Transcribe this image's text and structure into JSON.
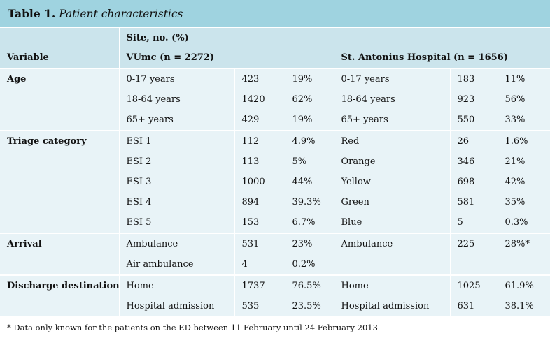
{
  "table": {
    "title_label": "Table 1.",
    "title_text": "Patient characteristics",
    "header_top": "Site, no. (%)",
    "header": {
      "variable": "Variable",
      "site1": "VUmc (n = 2272)",
      "site2": "St. Antonius Hospital (n = 1656)"
    },
    "rows": [
      {
        "var": "Age",
        "a_label": "0-17 years",
        "a_n": "423",
        "a_pct": "19%",
        "b_label": "0-17 years",
        "b_n": "183",
        "b_pct": "11%"
      },
      {
        "var": "",
        "a_label": "18-64 years",
        "a_n": "1420",
        "a_pct": "62%",
        "b_label": "18-64 years",
        "b_n": "923",
        "b_pct": "56%"
      },
      {
        "var": "",
        "a_label": "65+ years",
        "a_n": "429",
        "a_pct": "19%",
        "b_label": "65+ years",
        "b_n": "550",
        "b_pct": "33%"
      },
      {
        "var": "Triage category",
        "a_label": "ESI 1",
        "a_n": "112",
        "a_pct": "4.9%",
        "b_label": "Red",
        "b_n": "26",
        "b_pct": "1.6%"
      },
      {
        "var": "",
        "a_label": "ESI 2",
        "a_n": "113",
        "a_pct": "5%",
        "b_label": "Orange",
        "b_n": "346",
        "b_pct": "21%"
      },
      {
        "var": "",
        "a_label": "ESI 3",
        "a_n": "1000",
        "a_pct": "44%",
        "b_label": "Yellow",
        "b_n": "698",
        "b_pct": "42%"
      },
      {
        "var": "",
        "a_label": "ESI 4",
        "a_n": "894",
        "a_pct": "39.3%",
        "b_label": "Green",
        "b_n": "581",
        "b_pct": "35%"
      },
      {
        "var": "",
        "a_label": "ESI 5",
        "a_n": "153",
        "a_pct": "6.7%",
        "b_label": "Blue",
        "b_n": "5",
        "b_pct": "0.3%"
      },
      {
        "var": "Arrival",
        "a_label": "Ambulance",
        "a_n": "531",
        "a_pct": "23%",
        "b_label": "Ambulance",
        "b_n": "225",
        "b_pct": "28%*"
      },
      {
        "var": "",
        "a_label": "Air ambulance",
        "a_n": "4",
        "a_pct": "0.2%",
        "b_label": "",
        "b_n": "",
        "b_pct": ""
      },
      {
        "var": "Discharge destination",
        "a_label": "Home",
        "a_n": "1737",
        "a_pct": "76.5%",
        "b_label": "Home",
        "b_n": "1025",
        "b_pct": "61.9%"
      },
      {
        "var": "",
        "a_label": "Hospital admission",
        "a_n": "535",
        "a_pct": "23.5%",
        "b_label": "Hospital admission",
        "b_n": "631",
        "b_pct": "38.1%"
      }
    ],
    "footnote": "* Data only known for the patients on the ED between 11 February until 24 February 2013"
  }
}
